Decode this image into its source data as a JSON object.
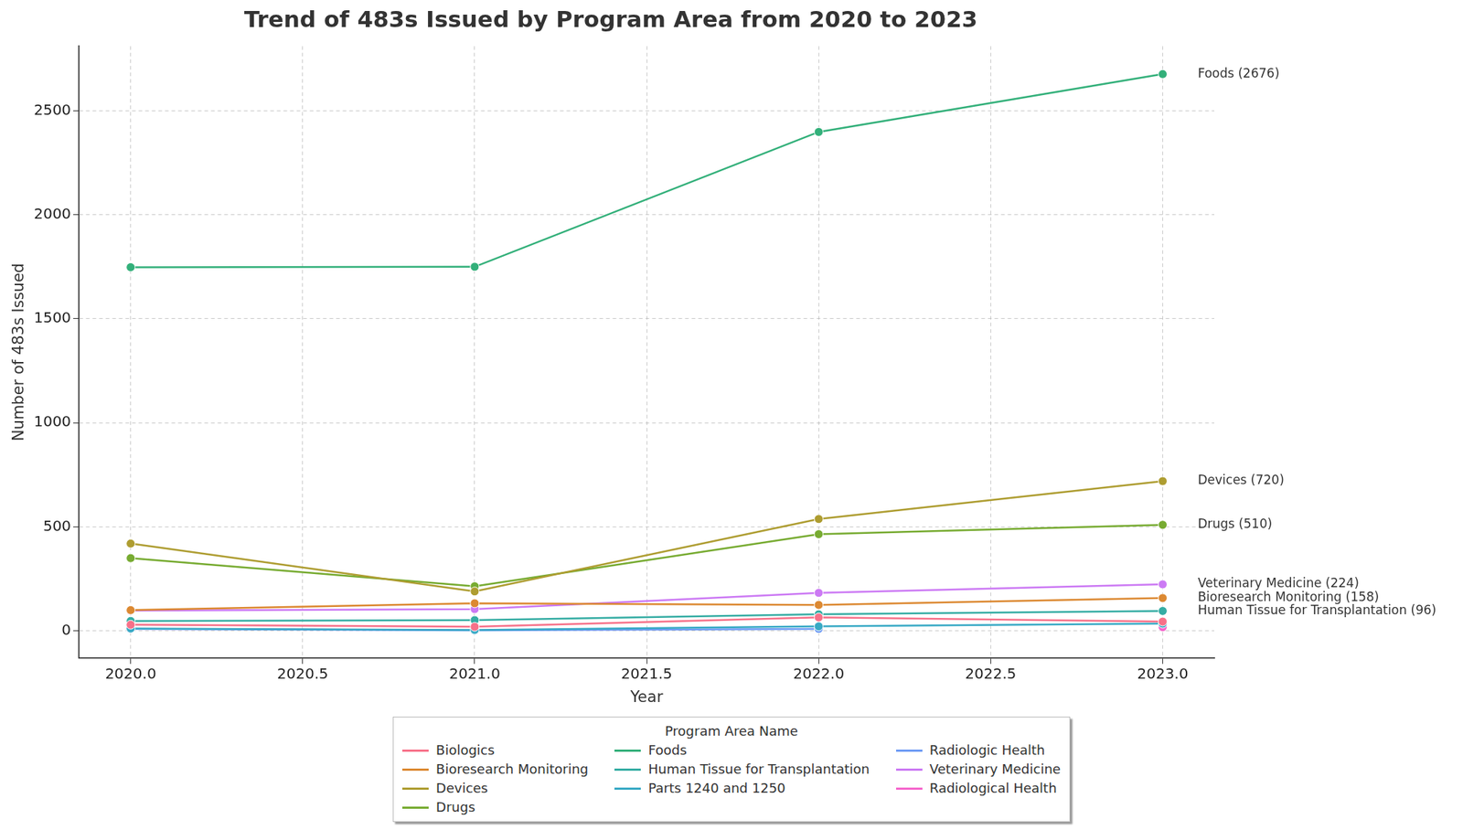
{
  "chart_data": {
    "type": "line",
    "title": "Trend of 483s Issued by Program Area from 2020 to 2023",
    "x_label": "Year",
    "y_label": "Number of 483s Issued",
    "x": [
      2020,
      2021,
      2022,
      2023
    ],
    "series": [
      {
        "name": "Biologics",
        "color": "#f77189",
        "values": [
          30,
          20,
          65,
          45
        ]
      },
      {
        "name": "Bioresearch Monitoring",
        "color": "#dc8932",
        "values": [
          100,
          133,
          125,
          158
        ]
      },
      {
        "name": "Devices",
        "color": "#ae9d31",
        "values": [
          420,
          190,
          538,
          720
        ]
      },
      {
        "name": "Drugs",
        "color": "#77ab31",
        "values": [
          350,
          215,
          465,
          510
        ]
      },
      {
        "name": "Foods",
        "color": "#33b07a",
        "values": [
          1748,
          1750,
          2398,
          2676
        ]
      },
      {
        "name": "Human Tissue for Transplantation",
        "color": "#36ada4",
        "values": [
          48,
          52,
          80,
          96
        ]
      },
      {
        "name": "Parts 1240 and 1250",
        "color": "#38a9c5",
        "values": [
          12,
          5,
          22,
          35
        ]
      },
      {
        "name": "Radiologic Health",
        "color": "#6e9bf4",
        "values": [
          10,
          3,
          10,
          null
        ]
      },
      {
        "name": "Veterinary Medicine",
        "color": "#cc7af4",
        "values": [
          98,
          105,
          183,
          224
        ]
      },
      {
        "name": "Radiological Health",
        "color": "#f565cc",
        "values": [
          null,
          null,
          null,
          18
        ]
      }
    ],
    "xlim": [
      2019.85,
      2023.15
    ],
    "xticks": [
      {
        "value": 2020,
        "label": "2020.0"
      },
      {
        "value": 2020.5,
        "label": "2020.5"
      },
      {
        "value": 2021,
        "label": "2021.0"
      },
      {
        "value": 2021.5,
        "label": "2021.5"
      },
      {
        "value": 2022,
        "label": "2022.0"
      },
      {
        "value": 2022.5,
        "label": "2022.5"
      },
      {
        "value": 2023,
        "label": "2023.0"
      }
    ],
    "ylim": [
      -130,
      2810
    ],
    "yticks": [
      0,
      500,
      1000,
      1500,
      2000,
      2500
    ],
    "grid": true,
    "marker": "circle",
    "legend": "bottom",
    "legend_title": "Program Area Name",
    "annotations": [
      {
        "text": "Foods (2676)",
        "x": 2023,
        "y": 2676
      },
      {
        "text": "Devices (720)",
        "x": 2023,
        "y": 720
      },
      {
        "text": "Drugs (510)",
        "x": 2023,
        "y": 510
      },
      {
        "text": "Veterinary Medicine (224)",
        "x": 2023,
        "y": 224
      },
      {
        "text": "Bioresearch Monitoring (158)",
        "x": 2023,
        "y": 158
      },
      {
        "text": "Human Tissue for Transplantation (96)",
        "x": 2023,
        "y": 96
      }
    ]
  }
}
